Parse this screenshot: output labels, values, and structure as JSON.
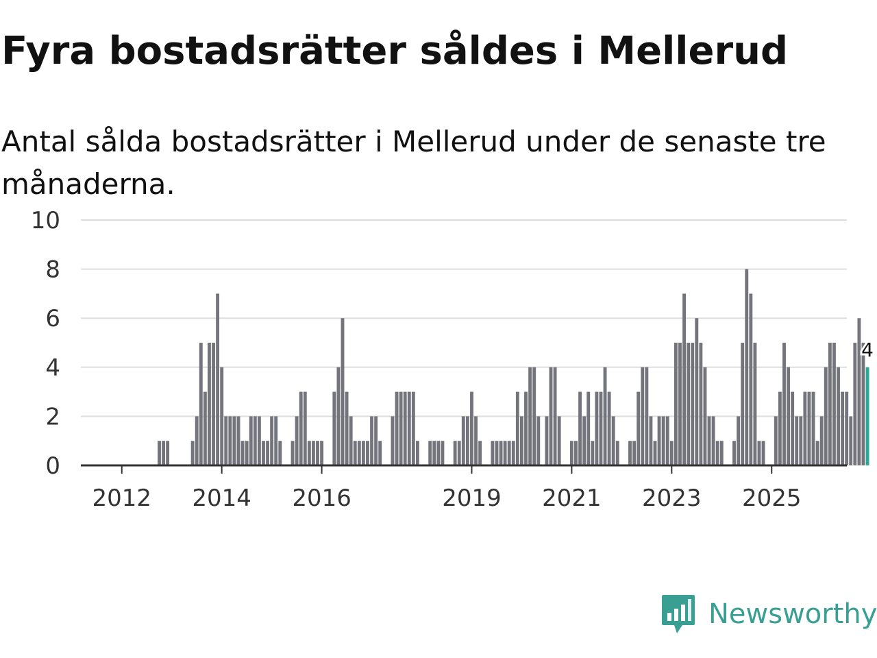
{
  "title": "Fyra bostadsrätter såldes i Mellerud",
  "subtitle": "Antal sålda bostadsrätter i Mellerud under de senaste tre månaderna.",
  "logo_text": "Newsworthy",
  "colors": {
    "bar": "#74747c",
    "highlight": "#2ea79b",
    "grid": "#dddddd",
    "axis": "#333333",
    "logo": "#3a9f93"
  },
  "chart_data": {
    "type": "bar",
    "title": "Fyra bostadsrätter såldes i Mellerud",
    "subtitle": "Antal sålda bostadsrätter i Mellerud under de senaste tre månaderna.",
    "xlabel": "",
    "ylabel": "",
    "ylim": [
      0,
      10
    ],
    "yticks": [
      0,
      2,
      4,
      6,
      8,
      10
    ],
    "xticks": [
      "2012",
      "2014",
      "2016",
      "2019",
      "2021",
      "2023",
      "2025"
    ],
    "grid": true,
    "x_start": "2011-04",
    "highlight_label": "4",
    "values": [
      0,
      0,
      0,
      0,
      0,
      0,
      0,
      0,
      0,
      0,
      0,
      0,
      0,
      0,
      0,
      0,
      0,
      0,
      1,
      1,
      1,
      0,
      0,
      0,
      0,
      0,
      1,
      2,
      5,
      3,
      5,
      5,
      7,
      4,
      2,
      2,
      2,
      2,
      1,
      1,
      2,
      2,
      2,
      1,
      1,
      2,
      2,
      1,
      0,
      0,
      1,
      2,
      3,
      3,
      1,
      1,
      1,
      1,
      0,
      0,
      3,
      4,
      6,
      3,
      2,
      1,
      1,
      1,
      1,
      2,
      2,
      1,
      0,
      0,
      2,
      3,
      3,
      3,
      3,
      3,
      1,
      0,
      0,
      1,
      1,
      1,
      1,
      0,
      0,
      1,
      1,
      2,
      2,
      3,
      2,
      1,
      0,
      0,
      1,
      1,
      1,
      1,
      1,
      1,
      3,
      2,
      3,
      4,
      4,
      2,
      0,
      2,
      4,
      4,
      2,
      0,
      0,
      1,
      1,
      3,
      2,
      3,
      1,
      3,
      3,
      4,
      3,
      2,
      1,
      0,
      0,
      1,
      1,
      3,
      4,
      4,
      2,
      1,
      2,
      2,
      2,
      1,
      5,
      5,
      7,
      5,
      5,
      6,
      5,
      4,
      2,
      2,
      1,
      1,
      0,
      0,
      1,
      2,
      5,
      8,
      7,
      5,
      1,
      1,
      0,
      0,
      2,
      3,
      5,
      4,
      3,
      2,
      2,
      3,
      3,
      3,
      1,
      2,
      4,
      5,
      5,
      4,
      3,
      3,
      2,
      5,
      6,
      5,
      4
    ]
  }
}
